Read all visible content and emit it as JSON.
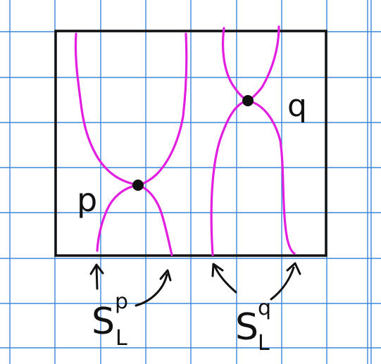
{
  "colors": {
    "background": "#ffffff",
    "grid": "#3d86d8",
    "frame": "#111111",
    "strand": "#e21ee0",
    "point": "#111111",
    "ink": "#111111"
  },
  "labels": {
    "point_p": "p",
    "point_q": "q",
    "s_left_main": "S",
    "s_left_sup": "p",
    "s_left_sub": "L",
    "s_right_main": "S",
    "s_right_sup": "q",
    "s_right_sub": "L"
  }
}
